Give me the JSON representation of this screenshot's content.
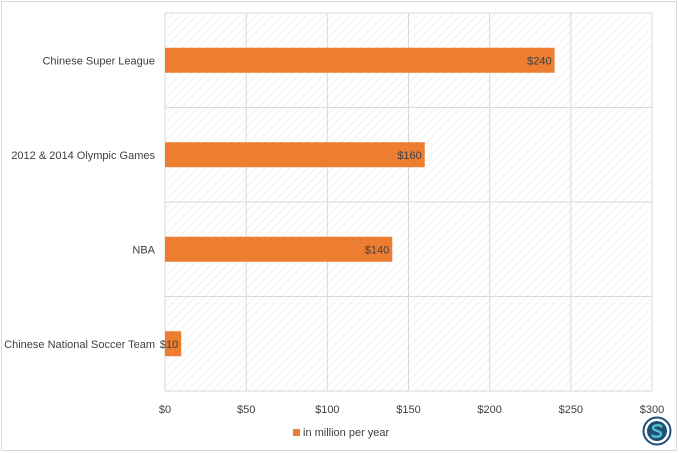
{
  "chart_data": {
    "type": "bar",
    "orientation": "horizontal",
    "categories": [
      "Chinese Super League",
      "2012 & 2014 Olympic Games",
      "NBA",
      "Chinese National Soccer Team"
    ],
    "series": [
      {
        "name": "in million per year",
        "values": [
          240,
          160,
          140,
          10
        ]
      }
    ],
    "data_labels": [
      "$240",
      "$160",
      "$140",
      "$10"
    ],
    "x_ticks": [
      "$0",
      "$50",
      "$100",
      "$150",
      "$200",
      "$250",
      "$300"
    ],
    "xlim": [
      0,
      300
    ],
    "grid": true,
    "legend_position": "bottom",
    "title": "",
    "xlabel": "",
    "ylabel": ""
  },
  "colors": {
    "bar": "#ed7d31",
    "grid": "#d9d9d9",
    "text": "#404040",
    "logo_primary": "#1f4e79",
    "logo_accent": "#4fc3c9"
  },
  "logo": {
    "icon": "s-logo-icon"
  }
}
